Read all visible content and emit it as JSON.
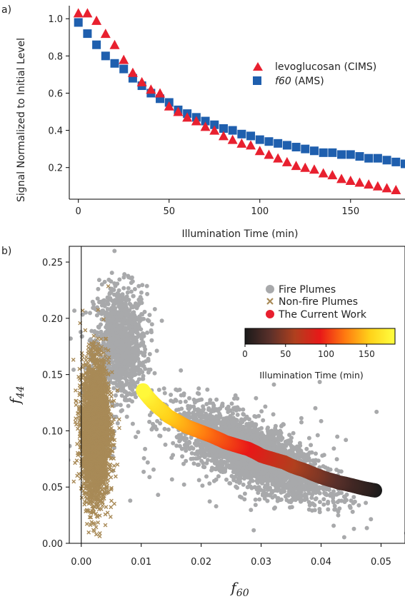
{
  "chart_data": [
    {
      "panel_label": "a)",
      "type": "scatter",
      "xlabel": "Illumination Time (min)",
      "ylabel": "Signal Normalized to Initial Level",
      "xlim": [
        -5,
        180
      ],
      "ylim": [
        0.03,
        1.07
      ],
      "xticks": [
        0,
        50,
        100,
        150
      ],
      "xtick_labels": [
        "0",
        "50",
        "100",
        "150"
      ],
      "yticks": [
        0.2,
        0.4,
        0.6,
        0.8,
        1.0
      ],
      "ytick_labels": [
        "0.2",
        "0.4",
        "0.6",
        "0.8",
        "1.0"
      ],
      "legend_position": "right",
      "series": [
        {
          "name": "levoglucosan",
          "name_suffix": " (CIMS)",
          "marker": "triangle",
          "color": "#e8202f",
          "x": [
            0,
            5,
            10,
            15,
            20,
            25,
            30,
            35,
            40,
            45,
            50,
            55,
            60,
            65,
            70,
            75,
            80,
            85,
            90,
            95,
            100,
            105,
            110,
            115,
            120,
            125,
            130,
            135,
            140,
            145,
            150,
            155,
            160,
            165,
            170,
            175
          ],
          "y": [
            1.03,
            1.03,
            0.99,
            0.92,
            0.86,
            0.78,
            0.71,
            0.66,
            0.62,
            0.6,
            0.53,
            0.5,
            0.47,
            0.45,
            0.42,
            0.4,
            0.37,
            0.35,
            0.33,
            0.32,
            0.29,
            0.27,
            0.25,
            0.23,
            0.21,
            0.2,
            0.19,
            0.17,
            0.16,
            0.14,
            0.13,
            0.12,
            0.11,
            0.1,
            0.09,
            0.08
          ]
        },
        {
          "name": "f60",
          "name_suffix": " (AMS)",
          "marker": "square",
          "color": "#1f5fae",
          "x": [
            0,
            5,
            10,
            15,
            20,
            25,
            30,
            35,
            40,
            45,
            50,
            55,
            60,
            65,
            70,
            75,
            80,
            85,
            90,
            95,
            100,
            105,
            110,
            115,
            120,
            125,
            130,
            135,
            140,
            145,
            150,
            155,
            160,
            165,
            170,
            175,
            180
          ],
          "y": [
            0.98,
            0.92,
            0.86,
            0.8,
            0.76,
            0.73,
            0.68,
            0.64,
            0.6,
            0.57,
            0.55,
            0.51,
            0.49,
            0.47,
            0.45,
            0.43,
            0.41,
            0.4,
            0.38,
            0.37,
            0.35,
            0.34,
            0.33,
            0.32,
            0.31,
            0.3,
            0.29,
            0.28,
            0.28,
            0.27,
            0.27,
            0.26,
            0.25,
            0.25,
            0.24,
            0.23,
            0.22
          ]
        }
      ]
    },
    {
      "panel_label": "b)",
      "type": "scatter",
      "xlabel": "f60",
      "ylabel": "f44",
      "xlim": [
        -0.002,
        0.054
      ],
      "ylim": [
        0.0,
        0.264
      ],
      "xticks": [
        0.0,
        0.01,
        0.02,
        0.03,
        0.04,
        0.05
      ],
      "xtick_labels": [
        "0.00",
        "0.01",
        "0.02",
        "0.03",
        "0.04",
        "0.05"
      ],
      "yticks": [
        0.0,
        0.05,
        0.1,
        0.15,
        0.2,
        0.25
      ],
      "ytick_labels": [
        "0.00",
        "0.05",
        "0.10",
        "0.15",
        "0.20",
        "0.25"
      ],
      "legend_position": "top-right",
      "series": [
        {
          "name": "Fire Plumes",
          "marker": "circle",
          "color": "#a8a9ab",
          "clusters": [
            {
              "n": 1100,
              "x_center": 0.0065,
              "y_center": 0.178,
              "x_spread": 0.0022,
              "y_spread": 0.025
            },
            {
              "n": 3200,
              "x_center": 0.0285,
              "y_center": 0.08,
              "x_spread": 0.006,
              "y_spread": 0.013,
              "slope": -2.3
            },
            {
              "n": 150,
              "x_center": 0.024,
              "y_center": 0.09,
              "x_spread": 0.012,
              "y_spread": 0.03
            }
          ]
        },
        {
          "name": "Non-fire Plumes",
          "marker": "x",
          "color": "#a88a57",
          "clusters": [
            {
              "n": 3600,
              "x_center": 0.0024,
              "y_center": 0.1,
              "x_spread": 0.0011,
              "y_spread": 0.03
            }
          ]
        },
        {
          "name": "The Current Work",
          "marker": "circle",
          "color": "#e8202f",
          "color_by": "illumination_time",
          "t": [
            0,
            5,
            10,
            15,
            20,
            25,
            30,
            35,
            40,
            45,
            50,
            55,
            60,
            65,
            70,
            75,
            80,
            85,
            90,
            95,
            100,
            105,
            110,
            115,
            120,
            125,
            130,
            135,
            140,
            145,
            150,
            155,
            160,
            165,
            170,
            175,
            180
          ],
          "x": [
            0.049,
            0.048,
            0.047,
            0.0455,
            0.044,
            0.043,
            0.0418,
            0.0405,
            0.0395,
            0.0385,
            0.0372,
            0.036,
            0.035,
            0.0338,
            0.0325,
            0.0312,
            0.03,
            0.029,
            0.0278,
            0.0265,
            0.0252,
            0.024,
            0.0228,
            0.0215,
            0.0205,
            0.0195,
            0.0185,
            0.0175,
            0.0165,
            0.0155,
            0.0145,
            0.0137,
            0.0128,
            0.012,
            0.0113,
            0.0107,
            0.0103
          ],
          "y": [
            0.047,
            0.048,
            0.049,
            0.051,
            0.053,
            0.054,
            0.056,
            0.058,
            0.06,
            0.062,
            0.065,
            0.067,
            0.069,
            0.072,
            0.074,
            0.076,
            0.078,
            0.081,
            0.084,
            0.086,
            0.088,
            0.09,
            0.093,
            0.096,
            0.098,
            0.1,
            0.102,
            0.104,
            0.107,
            0.11,
            0.113,
            0.117,
            0.121,
            0.125,
            0.129,
            0.133,
            0.136
          ]
        }
      ],
      "colorbar": {
        "label": "Illumination Time (min)",
        "range": [
          0,
          185
        ],
        "ticks": [
          0,
          50,
          100,
          150
        ],
        "tick_labels": [
          "0",
          "50",
          "100",
          "150"
        ],
        "colormap": [
          "#1a1a1a",
          "#5a302a",
          "#b0401e",
          "#e81818",
          "#ff7a10",
          "#ffd21a",
          "#ffff40"
        ]
      }
    }
  ]
}
